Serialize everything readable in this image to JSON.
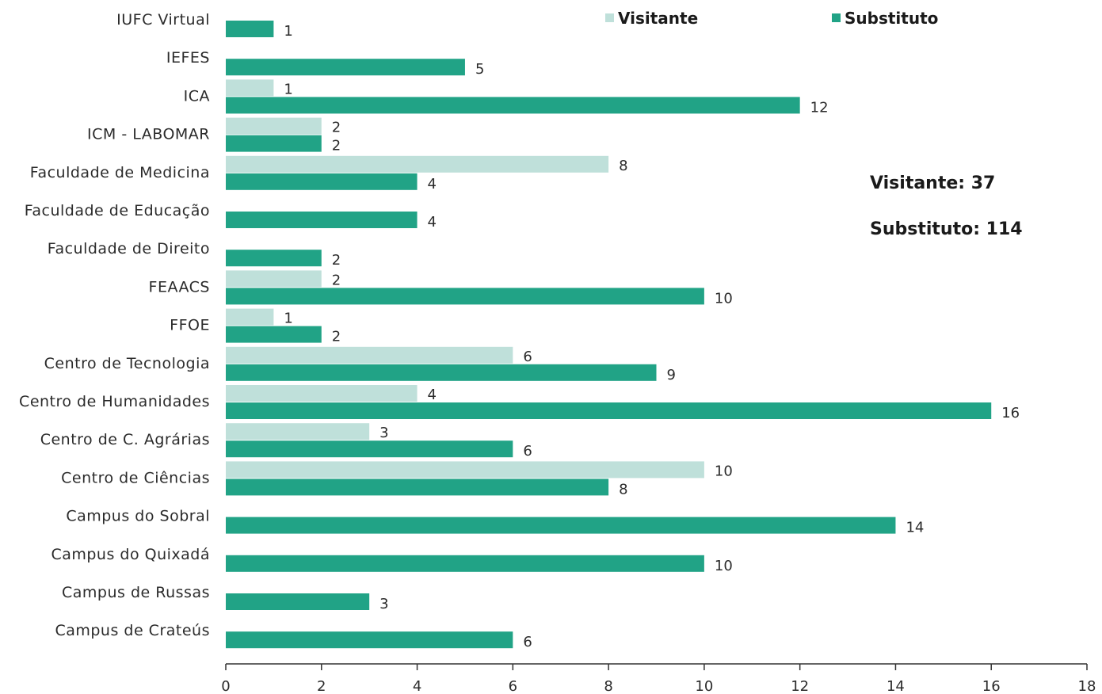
{
  "chart_data": {
    "type": "bar",
    "orientation": "horizontal",
    "categories": [
      "IUFC Virtual",
      "IEFES",
      "ICA",
      "ICM - LABOMAR",
      "Faculdade de Medicina",
      "Faculdade de Educação",
      "Faculdade de Direito",
      "FEAACS",
      "FFOE",
      "Centro de Tecnologia",
      "Centro de Humanidades",
      "Centro de C. Agrárias",
      "Centro de Ciências",
      "Campus do Sobral",
      "Campus do Quixadá",
      "Campus de Russas",
      "Campus de Crateús"
    ],
    "series": [
      {
        "name": "Visitante",
        "color": "#bfe0da",
        "values": [
          null,
          null,
          1,
          2,
          8,
          null,
          null,
          2,
          1,
          6,
          4,
          3,
          10,
          null,
          null,
          null,
          null
        ]
      },
      {
        "name": "Substituto",
        "color": "#21a386",
        "values": [
          1,
          5,
          12,
          2,
          4,
          4,
          2,
          10,
          2,
          9,
          16,
          6,
          8,
          14,
          10,
          3,
          6
        ]
      }
    ],
    "xlim": [
      0,
      18
    ],
    "xticks": [
      0,
      2,
      4,
      6,
      8,
      10,
      12,
      14,
      16,
      18
    ],
    "legend_position": "top",
    "grid": false
  },
  "totals": [
    {
      "label": "Visitante: 37"
    },
    {
      "label": "Substituto: 114"
    }
  ]
}
